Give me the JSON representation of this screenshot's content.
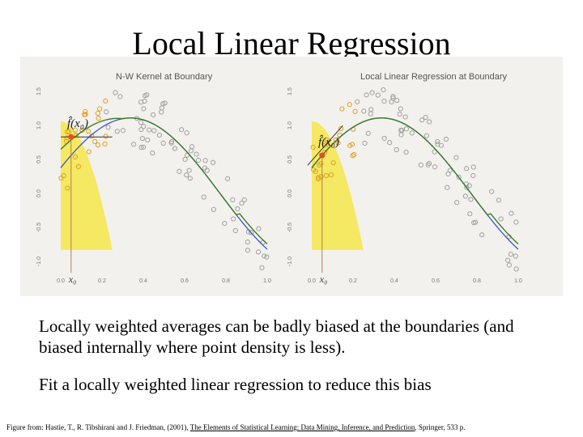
{
  "title": "Local Linear Regression",
  "figure": {
    "panels": [
      {
        "title": "N-W Kernel at Boundary",
        "fit_label": "f̂(x₀)",
        "x0_label": "x₀",
        "y_ticks": [
          "1.5",
          "1.0",
          "0.5",
          "0.0",
          "-0.5",
          "-1.0"
        ],
        "x_ticks": [
          "0.0",
          "0.2",
          "0.4",
          "0.6",
          "0.8",
          "1.0"
        ]
      },
      {
        "title": "Local Linear Regression at Boundary",
        "fit_label": "f̂(x₀)",
        "x0_label": "x₀",
        "y_ticks": [
          "1.5",
          "1.0",
          "0.5",
          "0.0",
          "-0.5",
          "-1.0"
        ],
        "x_ticks": [
          "0.0",
          "0.2",
          "0.4",
          "0.6",
          "0.8",
          "1.0"
        ]
      }
    ],
    "colors": {
      "kernel": "#f5e64a",
      "true_curve": "#3c55c8",
      "fit_curve": "#3a7d2a",
      "highlight": "#e05020",
      "points": "#a0a0a0",
      "in_window_points": "#e0a020"
    }
  },
  "body": {
    "para1": "Locally weighted averages can be badly biased at the boundaries (and biased internally where point density is less).",
    "para2": "Fit a locally weighted linear regression to reduce this bias"
  },
  "caption": {
    "prefix": "Figure from: Hastie, T., R. Tibshirani and J. Friedman, (2001), ",
    "book": "The Elements of Statistical Learning: Data Mining, Inference, and Prediction",
    "suffix": ", Springer, 533 p."
  }
}
